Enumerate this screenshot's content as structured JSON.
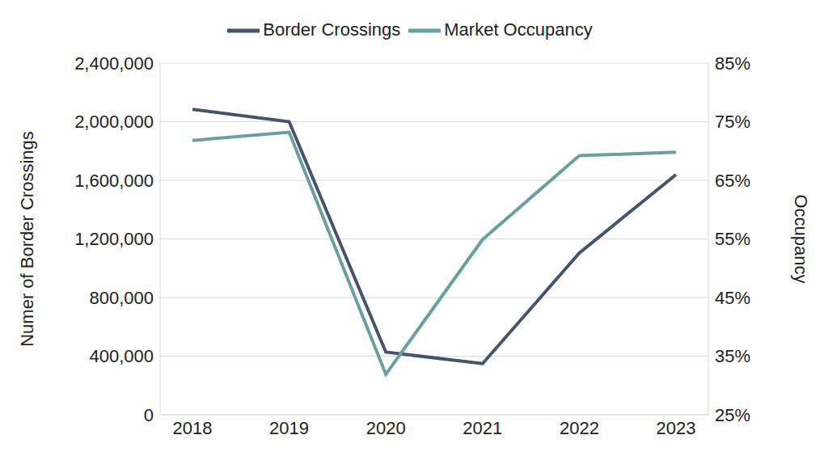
{
  "chart_data": {
    "type": "line",
    "categories": [
      "2018",
      "2019",
      "2020",
      "2021",
      "2022",
      "2023"
    ],
    "series": [
      {
        "name": "Border Crossings",
        "color": "#44546a",
        "values": [
          2084000,
          2000000,
          428000,
          349000,
          1104000,
          1639000
        ]
      },
      {
        "name": "Market Occupancy",
        "color": "#6a9fa1",
        "values": [
          71.8,
          73.2,
          31.9,
          54.9,
          69.2,
          69.8
        ],
        "axis": "y2"
      }
    ],
    "y_label": "Numer of Border Crossings",
    "y2_label": "Occupancy",
    "ylim": [
      0,
      2400000
    ],
    "yticks": [
      0,
      {
        "value": 400000,
        "label": "400,000"
      },
      {
        "value": 800000,
        "label": "800,000"
      },
      {
        "value": 1200000,
        "label": "1,200,000"
      },
      {
        "value": 1600000,
        "label": "1,600,000"
      },
      {
        "value": 2000000,
        "label": "2,000,000"
      },
      {
        "value": 2400000,
        "label": "2,400,000"
      }
    ],
    "y2lim": [
      25,
      85
    ],
    "y2ticks": [
      {
        "value": 25,
        "label": "25%"
      },
      {
        "value": 35,
        "label": "35%"
      },
      {
        "value": 45,
        "label": "45%"
      },
      {
        "value": 55,
        "label": "55%"
      },
      {
        "value": 65,
        "label": "65%"
      },
      {
        "value": 75,
        "label": "75%"
      },
      {
        "value": 85,
        "label": "85%"
      }
    ],
    "grid": true,
    "legend": "top"
  }
}
